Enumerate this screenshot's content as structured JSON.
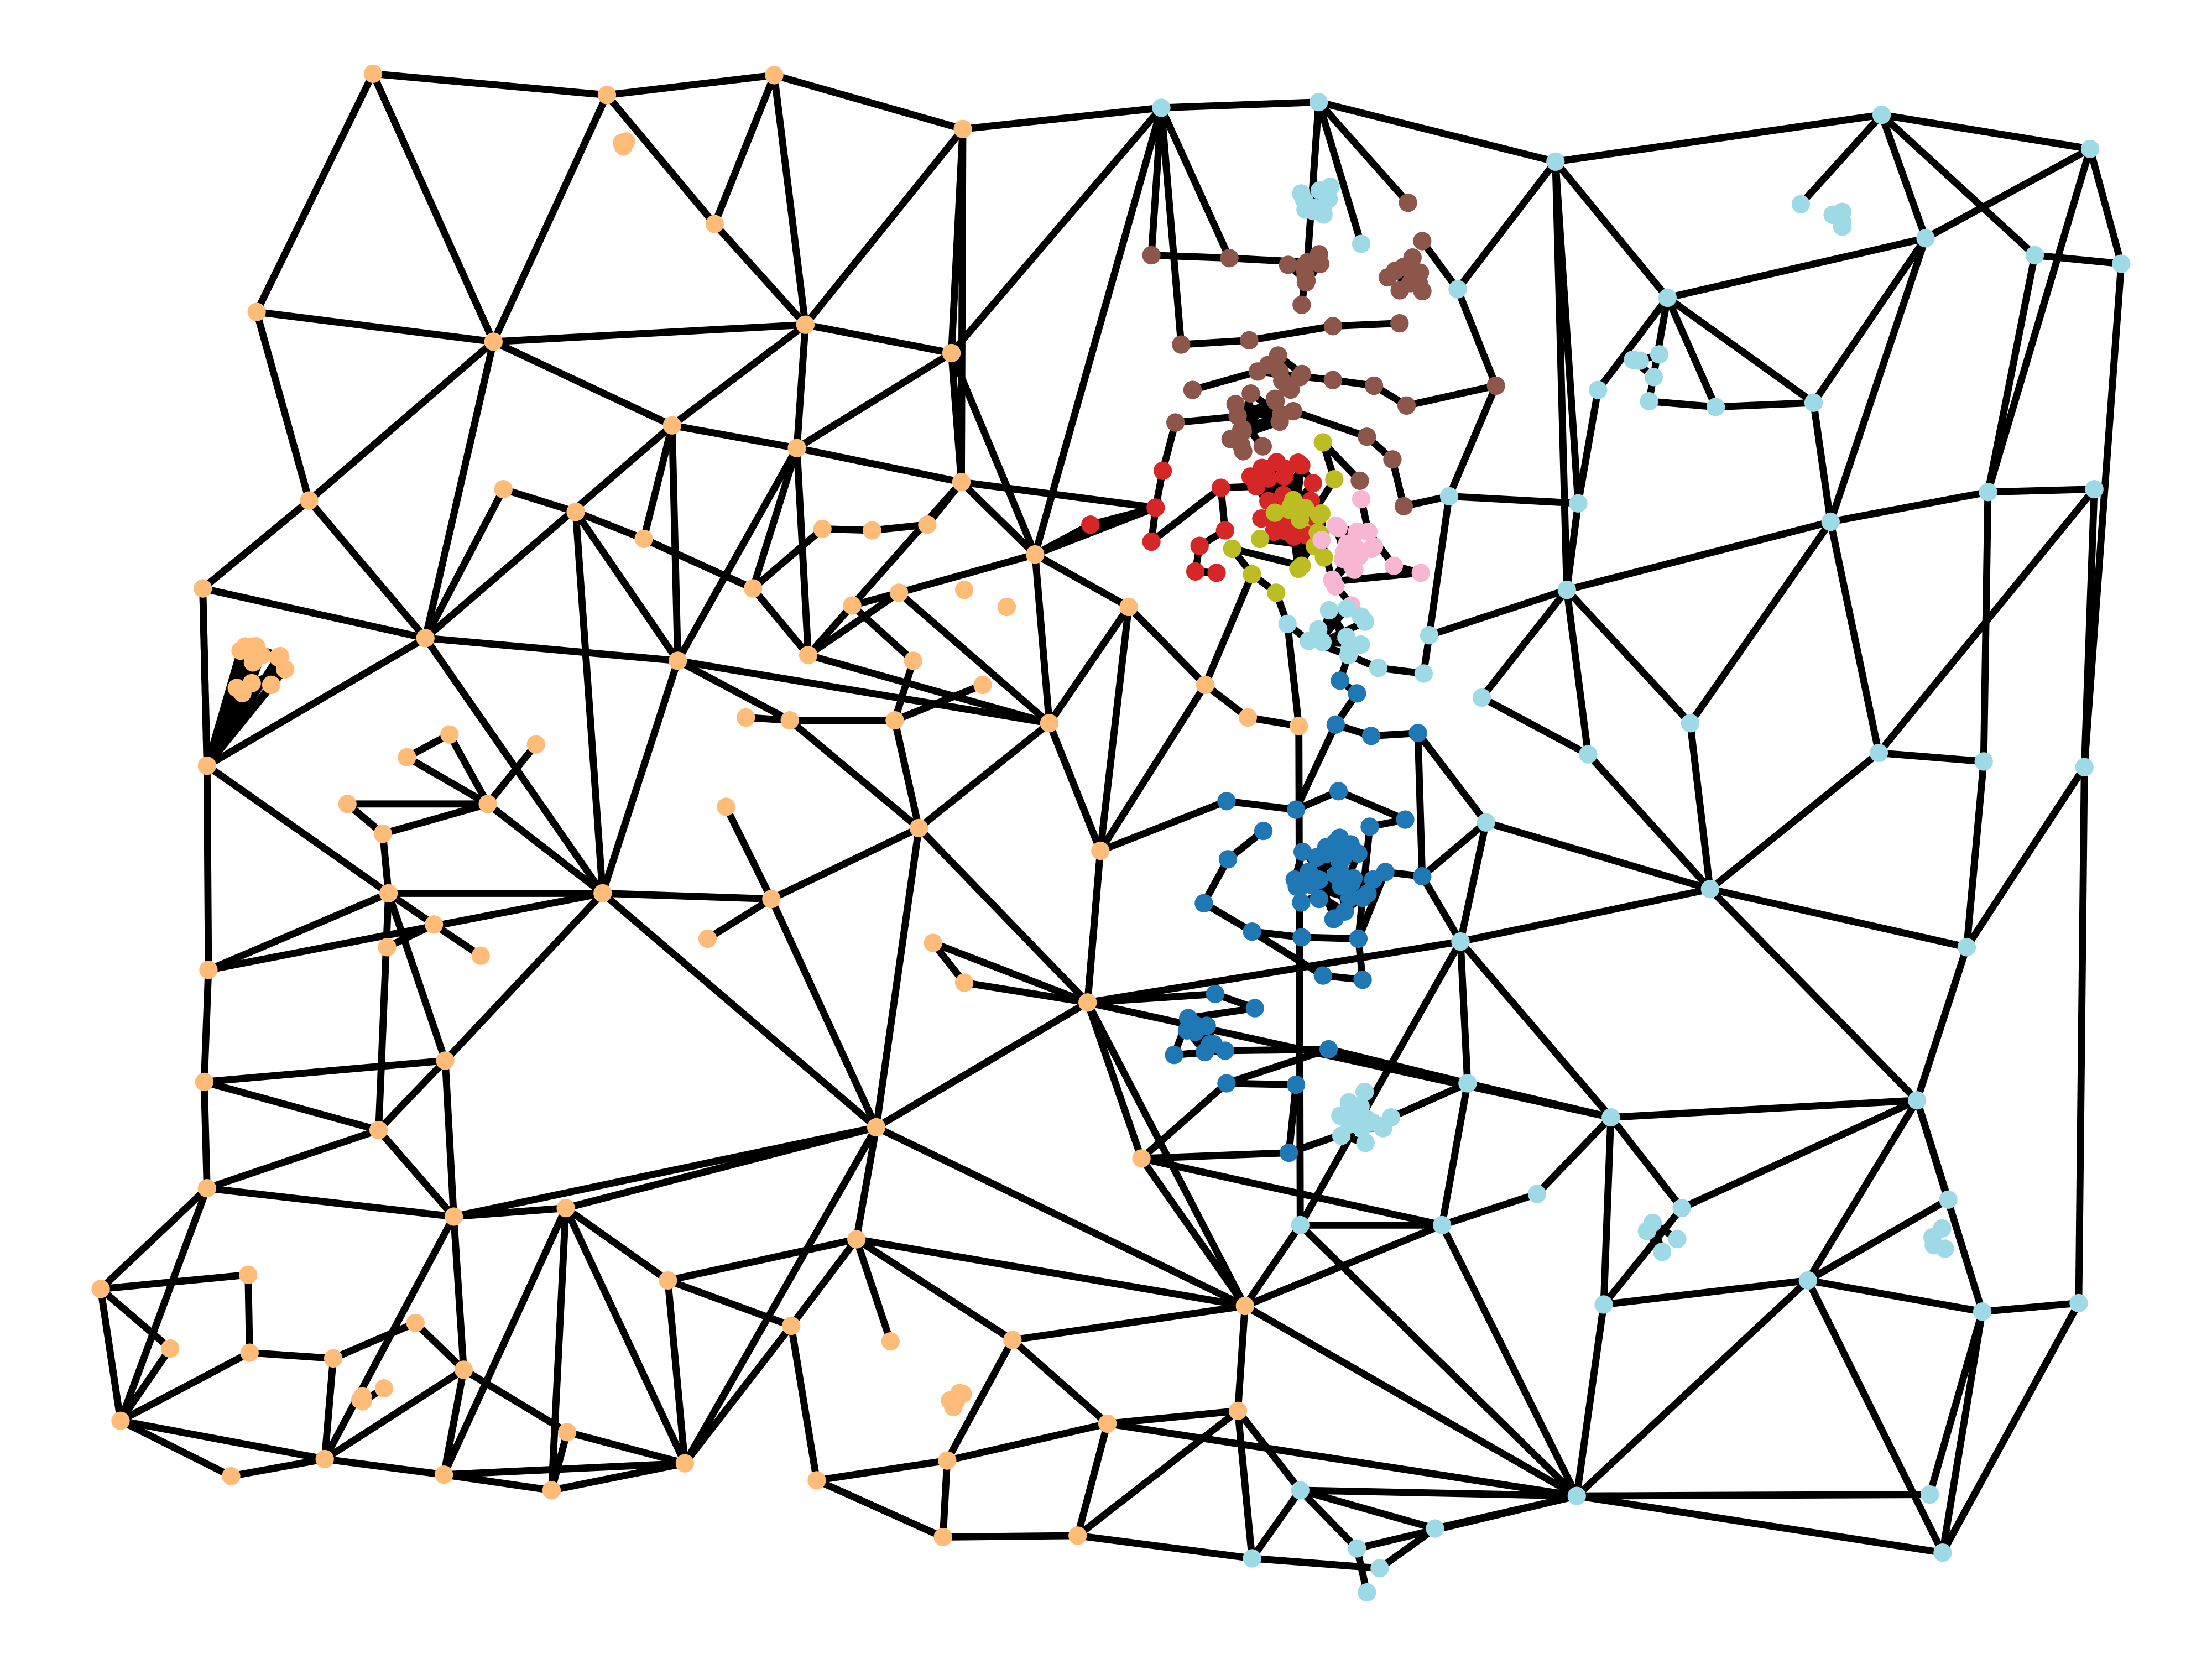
{
  "diagram": {
    "type": "planar-graph",
    "description_visible_text": "",
    "legend": [],
    "colors": {
      "edge": "#000000",
      "background": "#ffffff",
      "community_orange": "#ffbb78",
      "community_light_blue": "#9edae5",
      "community_blue": "#1f77b4",
      "community_brown": "#8c564b",
      "community_red": "#d62728",
      "community_olive": "#bcbd22",
      "community_pink": "#f7b6d2"
    },
    "communities": [
      {
        "id": "orange",
        "color": "#ffbb78"
      },
      {
        "id": "light-blue",
        "color": "#9edae5"
      },
      {
        "id": "blue",
        "color": "#1f77b4"
      },
      {
        "id": "brown",
        "color": "#8c564b"
      },
      {
        "id": "red",
        "color": "#d62728"
      },
      {
        "id": "olive",
        "color": "#bcbd22"
      },
      {
        "id": "pink",
        "color": "#f7b6d2"
      }
    ]
  }
}
